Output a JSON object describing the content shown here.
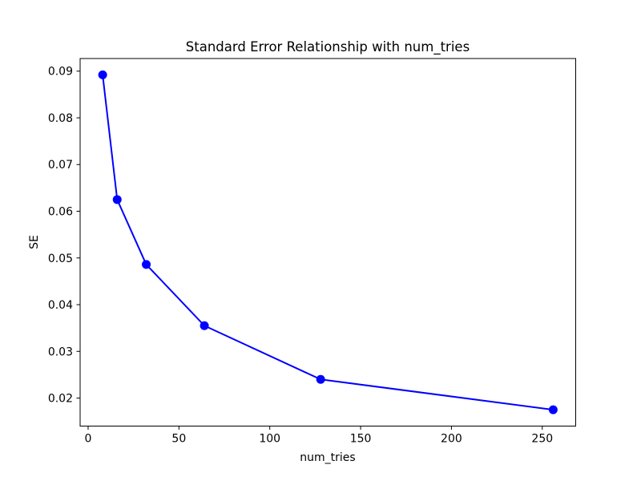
{
  "chart_data": {
    "type": "line",
    "title": "Standard Error Relationship with num_tries",
    "xlabel": "num_tries",
    "ylabel": "SE",
    "series": [
      {
        "name": "SE",
        "x": [
          8,
          16,
          32,
          64,
          128,
          256
        ],
        "y": [
          0.0892,
          0.0625,
          0.0486,
          0.0355,
          0.024,
          0.0175
        ]
      }
    ],
    "x_ticks": [
      0,
      50,
      100,
      150,
      200,
      250
    ],
    "x_tick_labels": [
      "0",
      "50",
      "100",
      "150",
      "200",
      "250"
    ],
    "y_ticks": [
      0.02,
      0.03,
      0.04,
      0.05,
      0.06,
      0.07,
      0.08,
      0.09
    ],
    "y_tick_labels": [
      "0.02",
      "0.03",
      "0.04",
      "0.05",
      "0.06",
      "0.07",
      "0.08",
      "0.09"
    ],
    "xlim": [
      -4.4,
      268.4
    ],
    "ylim": [
      0.014,
      0.0927
    ],
    "grid": false,
    "legend": null,
    "line_color": "#0000ff",
    "marker": "o",
    "marker_color": "#0000ff",
    "axis_color": "#000000",
    "background_color": "#ffffff"
  }
}
